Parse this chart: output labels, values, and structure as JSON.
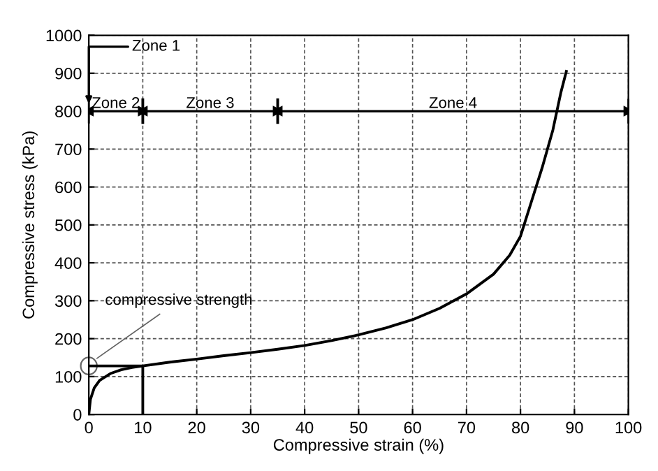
{
  "chart_data": {
    "type": "line",
    "xlabel": "Compressive strain (%)",
    "ylabel": "Compressive stress (kPa)",
    "xlim": [
      0,
      100
    ],
    "xticks": [
      0,
      10,
      20,
      30,
      40,
      50,
      60,
      70,
      80,
      90,
      100
    ],
    "ylim": [
      0,
      1000
    ],
    "yticks": [
      0,
      100,
      200,
      300,
      400,
      500,
      600,
      700,
      800,
      900,
      1000
    ],
    "grid": true,
    "line_style": "solid",
    "series": [
      {
        "color": "#000000",
        "x": [
          0,
          0.3,
          1,
          2,
          4,
          6,
          8,
          10,
          15,
          20,
          25,
          30,
          35,
          40,
          45,
          50,
          55,
          60,
          65,
          70,
          75,
          78,
          80,
          82,
          84,
          86,
          87.5,
          88.5
        ],
        "values": [
          0,
          40,
          70,
          90,
          108,
          118,
          124,
          128,
          138,
          146,
          155,
          163,
          172,
          182,
          195,
          210,
          228,
          250,
          280,
          318,
          370,
          420,
          470,
          560,
          650,
          750,
          850,
          905
        ]
      },
      {
        "color": "#000000",
        "x": [
          0,
          10,
          10
        ],
        "values": [
          128,
          128,
          0
        ]
      },
      {
        "color": "#000000",
        "x": [
          10,
          10
        ],
        "values": [
          770,
          830
        ]
      },
      {
        "color": "#000000",
        "x": [
          35,
          35
        ],
        "values": [
          770,
          830
        ]
      }
    ],
    "annotations": [
      "Zone 1",
      "Zone 2",
      "Zone 3",
      "Zone 4",
      {
        "text": "compressive strength",
        "x": 0,
        "y": 128
      }
    ]
  }
}
